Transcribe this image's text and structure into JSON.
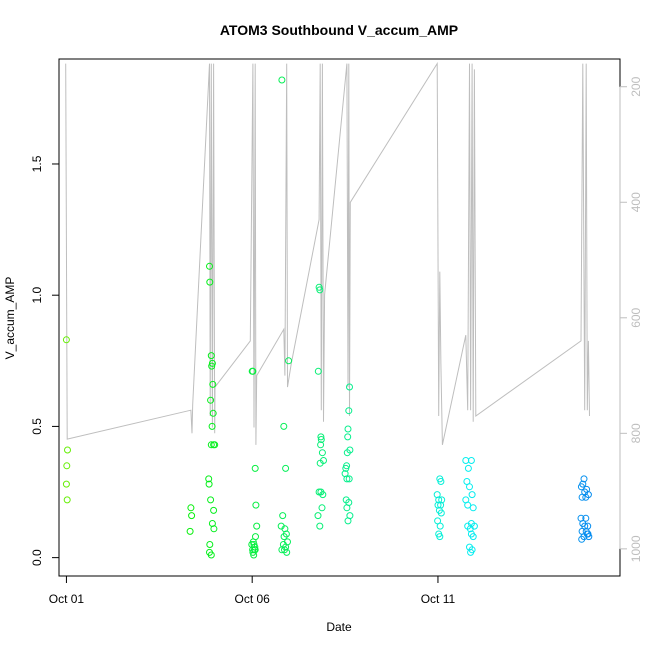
{
  "chart_data": {
    "type": "scatter",
    "title": "ATOM3 Southbound V_accum_AMP",
    "xlabel": "Date",
    "ylabel": "V_accum_AMP",
    "x_unit": "day of October 2023 (fractional)",
    "xlim": [
      0.8,
      15.9
    ],
    "ylim": [
      -0.07,
      1.9
    ],
    "y_ticks": [
      0.0,
      0.5,
      1.0,
      1.5
    ],
    "y_tick_labels": [
      "0.0",
      "0.5",
      "1.0",
      "1.5"
    ],
    "x_ticks": [
      1,
      6,
      11
    ],
    "x_tick_labels": [
      "Oct 01",
      "Oct 06",
      "Oct 11"
    ],
    "right_axis": {
      "color": "#bebebe",
      "ticks": [
        200,
        400,
        600,
        800,
        1000
      ],
      "ylim_reversed": [
        1047,
        152
      ]
    },
    "grid": false,
    "series": [
      {
        "marker": "open-circle",
        "color_by_time": true,
        "points": [
          [
            1.0,
            0.83
          ],
          [
            1.03,
            0.41
          ],
          [
            1.01,
            0.35
          ],
          [
            1.0,
            0.28
          ],
          [
            1.02,
            0.22
          ],
          [
            4.35,
            0.19
          ],
          [
            4.37,
            0.16
          ],
          [
            4.33,
            0.1
          ],
          [
            4.85,
            1.11
          ],
          [
            4.86,
            1.05
          ],
          [
            4.9,
            0.77
          ],
          [
            4.93,
            0.74
          ],
          [
            4.91,
            0.73
          ],
          [
            4.94,
            0.66
          ],
          [
            4.88,
            0.6
          ],
          [
            4.95,
            0.55
          ],
          [
            4.92,
            0.5
          ],
          [
            4.9,
            0.43
          ],
          [
            4.96,
            0.43
          ],
          [
            4.99,
            0.43
          ],
          [
            4.83,
            0.3
          ],
          [
            4.84,
            0.28
          ],
          [
            4.88,
            0.22
          ],
          [
            4.96,
            0.18
          ],
          [
            4.93,
            0.13
          ],
          [
            4.97,
            0.11
          ],
          [
            4.86,
            0.05
          ],
          [
            4.85,
            0.02
          ],
          [
            4.9,
            0.01
          ],
          [
            6.0,
            0.71
          ],
          [
            6.02,
            0.71
          ],
          [
            6.08,
            0.34
          ],
          [
            6.1,
            0.2
          ],
          [
            6.12,
            0.12
          ],
          [
            6.09,
            0.08
          ],
          [
            6.03,
            0.06
          ],
          [
            5.99,
            0.05
          ],
          [
            6.05,
            0.05
          ],
          [
            6.07,
            0.04
          ],
          [
            6.01,
            0.03
          ],
          [
            6.08,
            0.03
          ],
          [
            6.02,
            0.02
          ],
          [
            6.04,
            0.01
          ],
          [
            6.06,
            0.03
          ],
          [
            6.8,
            1.82
          ],
          [
            6.98,
            0.75
          ],
          [
            6.85,
            0.5
          ],
          [
            6.9,
            0.34
          ],
          [
            6.82,
            0.16
          ],
          [
            6.78,
            0.12
          ],
          [
            6.88,
            0.11
          ],
          [
            6.92,
            0.09
          ],
          [
            6.86,
            0.08
          ],
          [
            6.95,
            0.06
          ],
          [
            6.84,
            0.05
          ],
          [
            6.9,
            0.04
          ],
          [
            6.8,
            0.03
          ],
          [
            6.93,
            0.02
          ],
          [
            6.87,
            0.03
          ],
          [
            7.8,
            1.03
          ],
          [
            7.82,
            1.02
          ],
          [
            7.78,
            0.71
          ],
          [
            7.85,
            0.46
          ],
          [
            7.86,
            0.45
          ],
          [
            7.84,
            0.43
          ],
          [
            7.89,
            0.4
          ],
          [
            7.83,
            0.36
          ],
          [
            7.92,
            0.37
          ],
          [
            7.8,
            0.25
          ],
          [
            7.85,
            0.25
          ],
          [
            7.9,
            0.24
          ],
          [
            7.88,
            0.19
          ],
          [
            7.77,
            0.16
          ],
          [
            7.82,
            0.12
          ],
          [
            8.62,
            0.65
          ],
          [
            8.6,
            0.56
          ],
          [
            8.58,
            0.49
          ],
          [
            8.57,
            0.46
          ],
          [
            8.63,
            0.41
          ],
          [
            8.56,
            0.4
          ],
          [
            8.54,
            0.35
          ],
          [
            8.52,
            0.34
          ],
          [
            8.5,
            0.32
          ],
          [
            8.55,
            0.3
          ],
          [
            8.61,
            0.3
          ],
          [
            8.53,
            0.22
          ],
          [
            8.6,
            0.21
          ],
          [
            8.55,
            0.19
          ],
          [
            8.63,
            0.16
          ],
          [
            8.58,
            0.14
          ],
          [
            11.05,
            0.3
          ],
          [
            11.08,
            0.29
          ],
          [
            10.98,
            0.24
          ],
          [
            11.02,
            0.22
          ],
          [
            11.1,
            0.22
          ],
          [
            11.0,
            0.2
          ],
          [
            11.07,
            0.2
          ],
          [
            11.04,
            0.18
          ],
          [
            11.09,
            0.17
          ],
          [
            10.99,
            0.14
          ],
          [
            11.06,
            0.12
          ],
          [
            11.02,
            0.09
          ],
          [
            11.05,
            0.08
          ],
          [
            11.75,
            0.37
          ],
          [
            11.9,
            0.37
          ],
          [
            11.82,
            0.34
          ],
          [
            11.78,
            0.29
          ],
          [
            11.85,
            0.27
          ],
          [
            11.92,
            0.24
          ],
          [
            11.75,
            0.22
          ],
          [
            11.8,
            0.2
          ],
          [
            11.95,
            0.19
          ],
          [
            11.9,
            0.13
          ],
          [
            11.8,
            0.12
          ],
          [
            11.98,
            0.12
          ],
          [
            11.87,
            0.11
          ],
          [
            11.9,
            0.09
          ],
          [
            11.95,
            0.08
          ],
          [
            11.85,
            0.04
          ],
          [
            11.92,
            0.03
          ],
          [
            11.88,
            0.02
          ],
          [
            14.93,
            0.3
          ],
          [
            14.9,
            0.28
          ],
          [
            14.86,
            0.27
          ],
          [
            15.0,
            0.26
          ],
          [
            14.95,
            0.25
          ],
          [
            15.05,
            0.24
          ],
          [
            14.88,
            0.23
          ],
          [
            14.98,
            0.23
          ],
          [
            14.85,
            0.15
          ],
          [
            14.98,
            0.15
          ],
          [
            14.9,
            0.13
          ],
          [
            15.03,
            0.12
          ],
          [
            14.95,
            0.12
          ],
          [
            14.88,
            0.1
          ],
          [
            14.99,
            0.1
          ],
          [
            15.04,
            0.09
          ],
          [
            14.93,
            0.08
          ],
          [
            15.06,
            0.08
          ],
          [
            14.87,
            0.07
          ],
          [
            15.02,
            0.09
          ]
        ]
      },
      {
        "axis": "right",
        "color": "#bebebe",
        "type": "line",
        "points": [
          [
            0.98,
            160
          ],
          [
            1.02,
            810
          ],
          [
            4.35,
            760
          ],
          [
            4.38,
            800
          ],
          [
            4.4,
            750
          ],
          [
            4.85,
            160
          ],
          [
            4.87,
            770
          ],
          [
            4.9,
            160
          ],
          [
            4.93,
            790
          ],
          [
            4.96,
            160
          ],
          [
            4.99,
            800
          ],
          [
            5.0,
            720
          ],
          [
            5.95,
            640
          ],
          [
            6.02,
            160
          ],
          [
            6.05,
            790
          ],
          [
            6.08,
            160
          ],
          [
            6.1,
            820
          ],
          [
            6.12,
            700
          ],
          [
            6.85,
            620
          ],
          [
            6.88,
            700
          ],
          [
            6.93,
            160
          ],
          [
            6.95,
            720
          ],
          [
            7.05,
            680
          ],
          [
            7.8,
            430
          ],
          [
            7.83,
            160
          ],
          [
            7.86,
            760
          ],
          [
            7.89,
            160
          ],
          [
            7.92,
            780
          ],
          [
            7.95,
            560
          ],
          [
            8.55,
            160
          ],
          [
            8.58,
            720
          ],
          [
            8.6,
            160
          ],
          [
            8.62,
            770
          ],
          [
            8.64,
            400
          ],
          [
            10.98,
            160
          ],
          [
            11.02,
            770
          ],
          [
            11.05,
            520
          ],
          [
            11.08,
            680
          ],
          [
            11.12,
            820
          ],
          [
            11.75,
            630
          ],
          [
            11.8,
            760
          ],
          [
            11.85,
            160
          ],
          [
            11.88,
            760
          ],
          [
            11.92,
            160
          ],
          [
            11.95,
            780
          ],
          [
            11.98,
            170
          ],
          [
            12.02,
            770
          ],
          [
            14.85,
            640
          ],
          [
            14.9,
            160
          ],
          [
            14.95,
            760
          ],
          [
            14.99,
            160
          ],
          [
            15.02,
            760
          ],
          [
            15.05,
            640
          ],
          [
            15.08,
            770
          ]
        ]
      }
    ]
  }
}
